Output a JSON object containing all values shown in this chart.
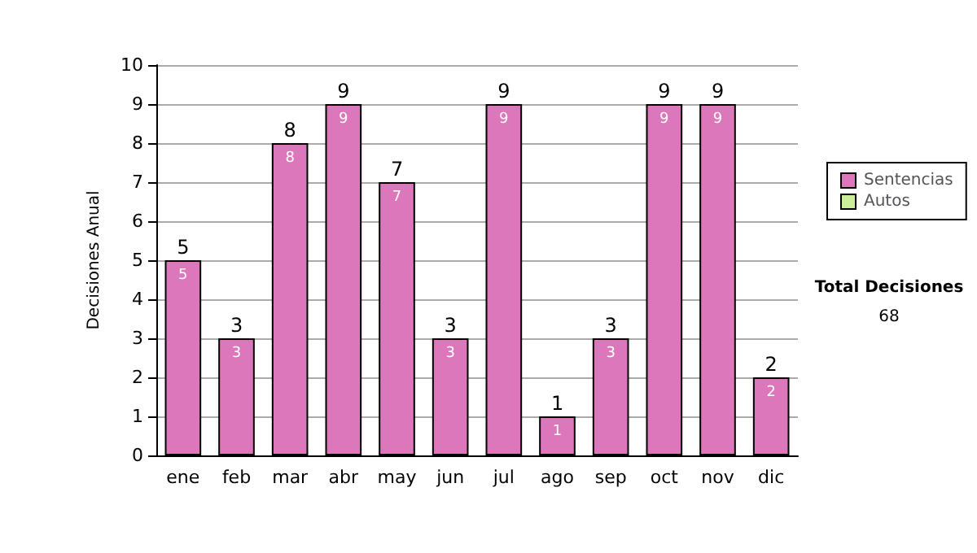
{
  "chart_data": {
    "type": "bar",
    "stacked": true,
    "ylabel": "Decisiones Anual",
    "categories": [
      "ene",
      "feb",
      "mar",
      "abr",
      "may",
      "jun",
      "jul",
      "ago",
      "sep",
      "oct",
      "nov",
      "dic"
    ],
    "series": [
      {
        "name": "Sentencias",
        "color": "#dd77bb",
        "values": [
          5,
          3,
          8,
          9,
          7,
          3,
          9,
          1,
          3,
          9,
          9,
          2
        ],
        "value_labels": [
          "5",
          "3",
          "8",
          "9",
          "7",
          "3",
          "9",
          "1",
          "3",
          "9",
          "9",
          "2"
        ]
      },
      {
        "name": "Autos",
        "color": "#ccee99",
        "values": [
          0,
          0,
          0,
          0,
          0,
          0,
          0,
          0,
          0,
          0,
          0,
          0
        ]
      }
    ],
    "totals": [
      "5",
      "3",
      "8",
      "9",
      "7",
      "3",
      "9",
      "1",
      "3",
      "9",
      "9",
      "2"
    ],
    "ylim": [
      0,
      10
    ],
    "yticks": [
      0,
      1,
      2,
      3,
      4,
      5,
      6,
      7,
      8,
      9,
      10
    ],
    "grid": "y",
    "legend": "right",
    "annotations": [
      "Total Decisiones",
      "68"
    ]
  }
}
